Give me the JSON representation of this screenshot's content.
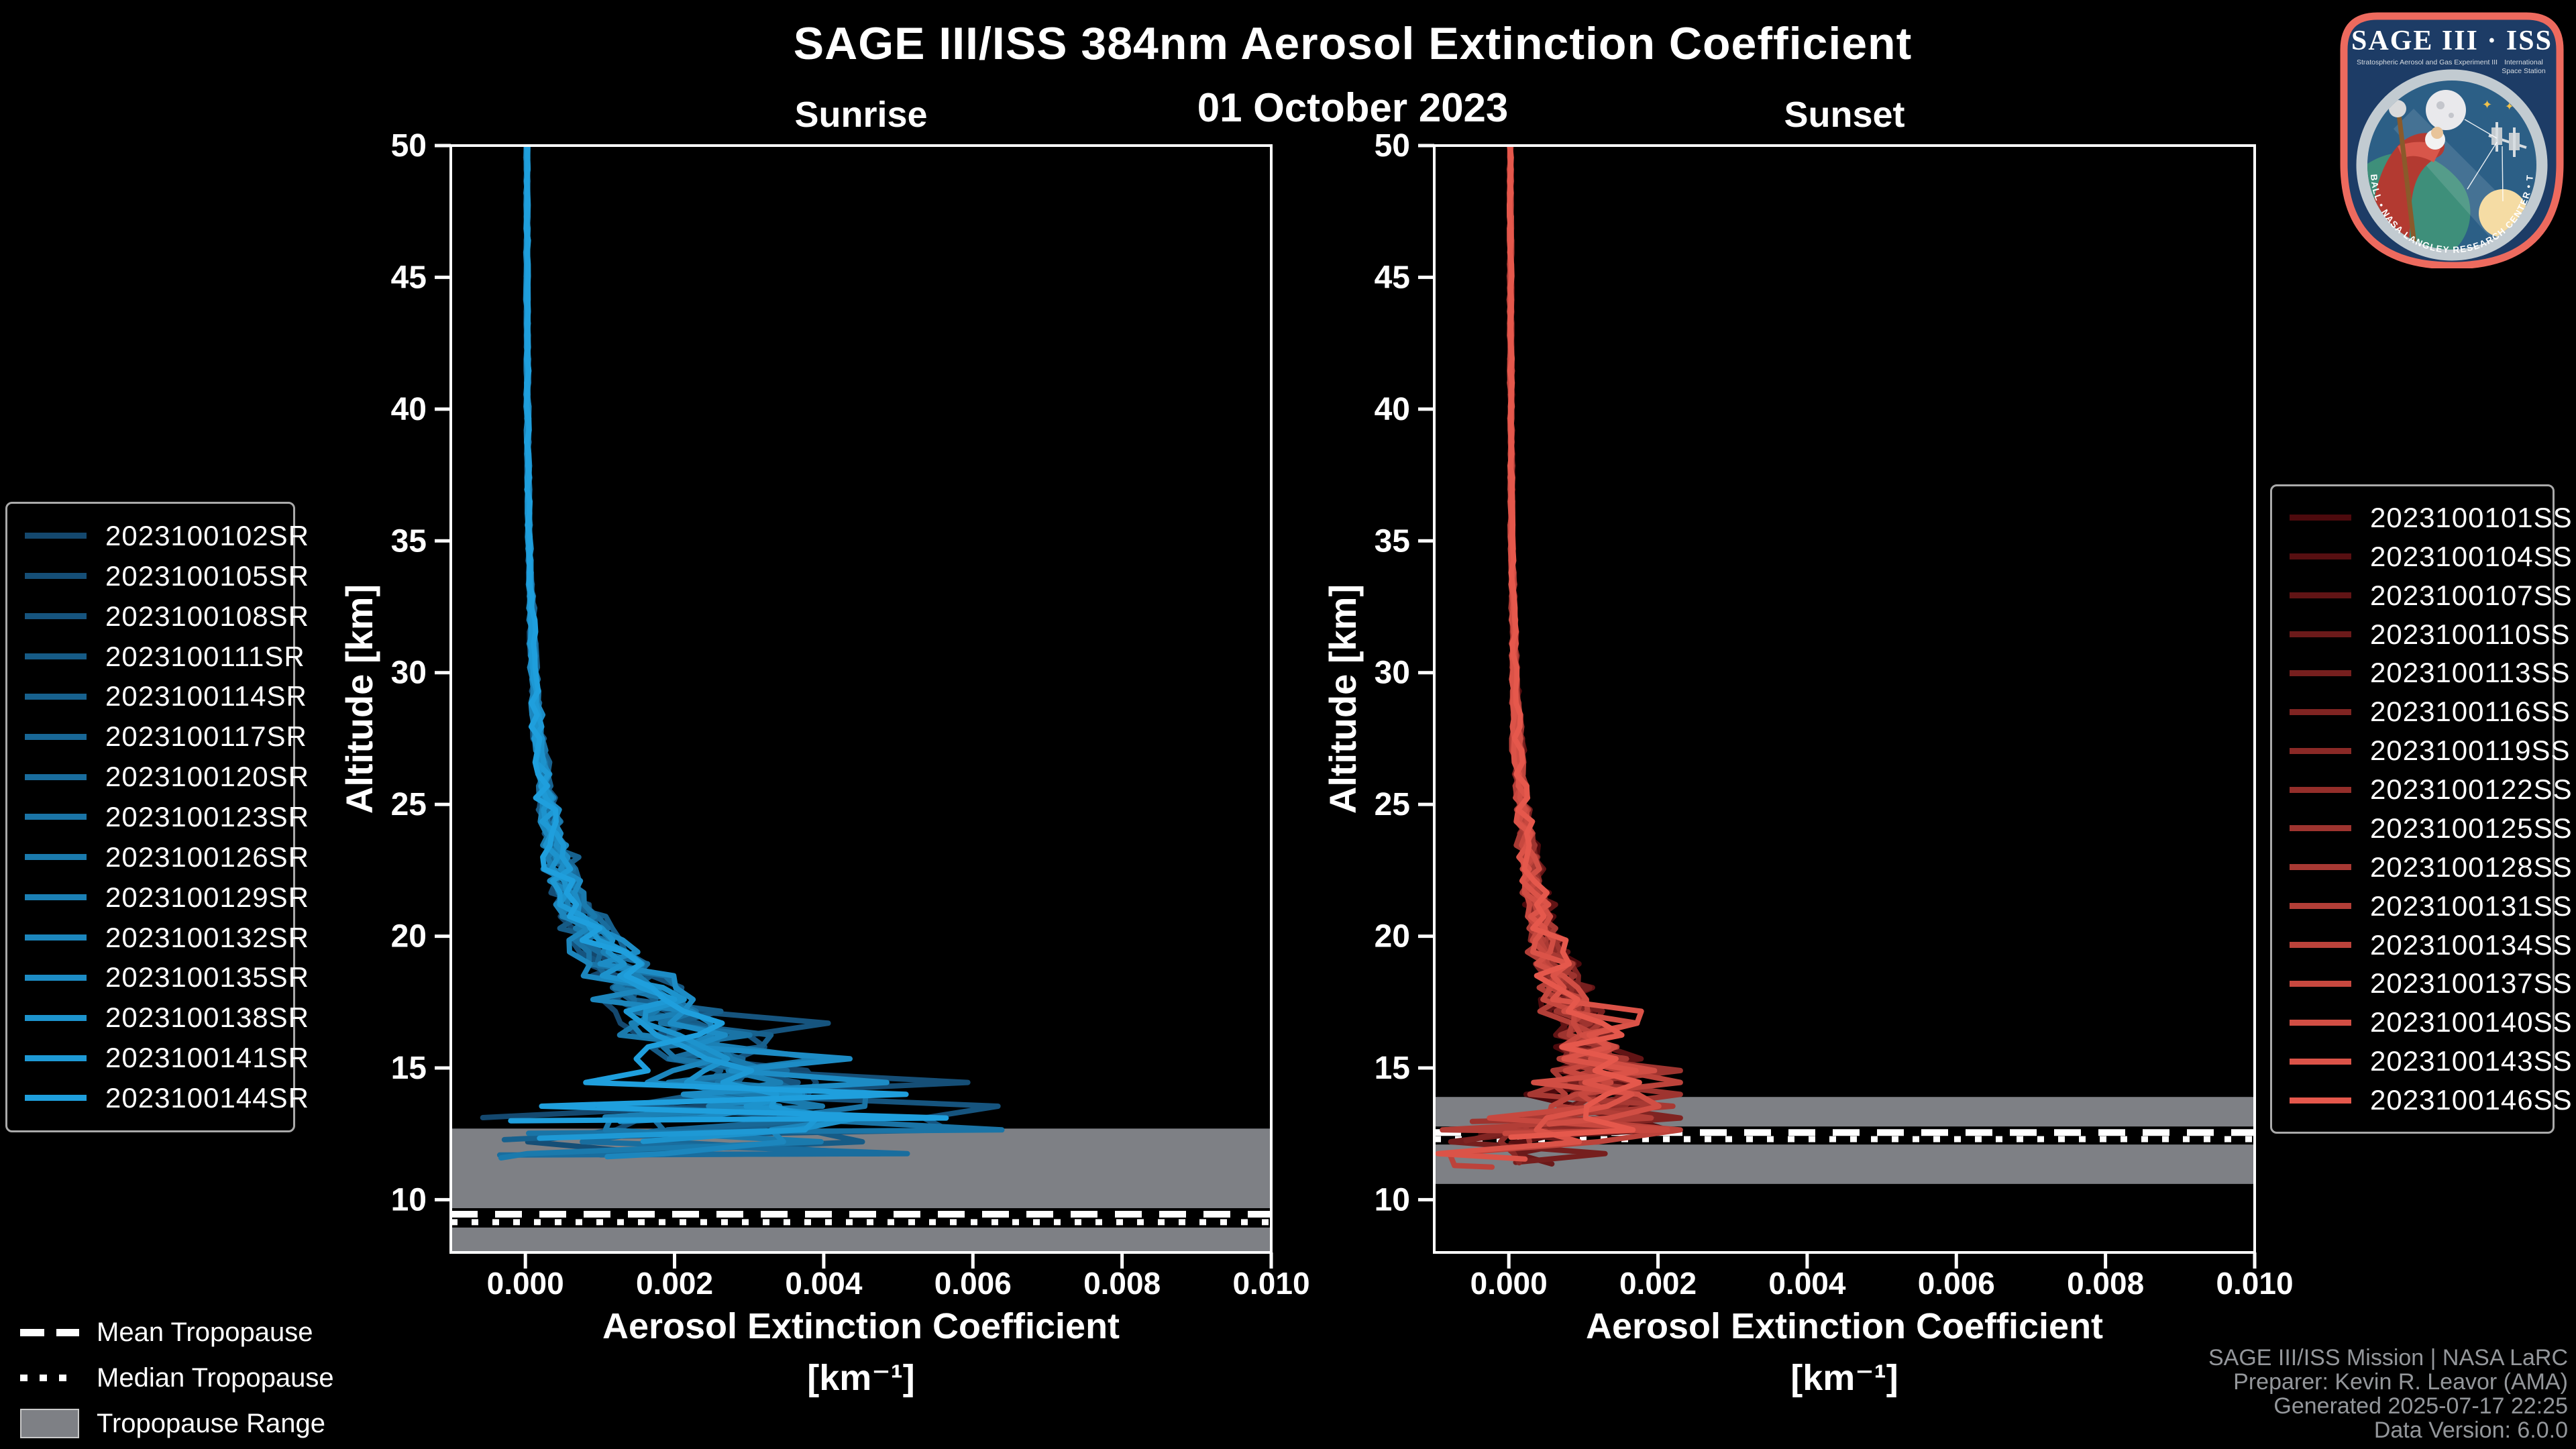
{
  "title": "SAGE III/ISS 384nm Aerosol Extinction Coefficient",
  "date": "01 October 2023",
  "credits": {
    "line1": "SAGE III/ISS Mission | NASA LaRC",
    "line2": "Preparer: Kevin R. Leavor (AMA)",
    "line3": "Generated 2025-07-17 22:25",
    "line4": "Data Version: 6.0.0"
  },
  "logo": {
    "main": "SAGE III · ISS",
    "sub_left": "Stratospheric Aerosol and Gas Experiment III",
    "sub_right_1": "International",
    "sub_right_2": "Space Station",
    "ring_text": "BALL • NASA LANGLEY RESEARCH CENTER • TAS-I • ESA"
  },
  "tropopause_legend": [
    {
      "label": "Mean Tropopause",
      "style": "dashed"
    },
    {
      "label": "Median Tropopause",
      "style": "dotted"
    },
    {
      "label": "Tropopause Range",
      "style": "band"
    }
  ],
  "chart_data": [
    {
      "type": "line",
      "title": "Sunrise",
      "xlabel_line1": "Aerosol Extinction Coefficient",
      "xlabel_line2": "[km⁻¹]",
      "ylabel": "Altitude [km]",
      "xlim": [
        -0.001,
        0.01
      ],
      "ylim": [
        8,
        50
      ],
      "x_tick_values": [
        0.0,
        0.002,
        0.004,
        0.006,
        0.008,
        0.01
      ],
      "x_tick_labels": [
        "0.000",
        "0.002",
        "0.004",
        "0.006",
        "0.008",
        "0.010"
      ],
      "y_tick_values": [
        10,
        15,
        20,
        25,
        30,
        35,
        40,
        45,
        50
      ],
      "series": [
        "2023100102SR",
        "2023100105SR",
        "2023100108SR",
        "2023100111SR",
        "2023100114SR",
        "2023100117SR",
        "2023100120SR",
        "2023100123SR",
        "2023100126SR",
        "2023100129SR",
        "2023100132SR",
        "2023100135SR",
        "2023100138SR",
        "2023100141SR",
        "2023100144SR"
      ],
      "color_ramp": [
        "#14486e",
        "#1f9fdd"
      ],
      "mean_profile_anchors": [
        [
          50,
          2e-05
        ],
        [
          40,
          3e-05
        ],
        [
          35,
          5e-05
        ],
        [
          30,
          0.00012
        ],
        [
          27,
          0.0002
        ],
        [
          25,
          0.0003
        ],
        [
          23,
          0.00045
        ],
        [
          21,
          0.0007
        ],
        [
          20,
          0.0009
        ],
        [
          19,
          0.0012
        ],
        [
          18,
          0.0016
        ],
        [
          17,
          0.002
        ],
        [
          16,
          0.0025
        ],
        [
          15,
          0.0028
        ],
        [
          14,
          0.003
        ],
        [
          13.2,
          0.0032
        ],
        [
          12.6,
          0.0031
        ],
        [
          12,
          0.0028
        ],
        [
          11.4,
          0.0024
        ]
      ],
      "spread_anchors": [
        [
          50,
          1.5e-05
        ],
        [
          35,
          2e-05
        ],
        [
          30,
          5e-05
        ],
        [
          26,
          0.0001
        ],
        [
          23,
          0.0002
        ],
        [
          21,
          0.0003
        ],
        [
          20,
          0.00042
        ],
        [
          18,
          0.0006
        ],
        [
          17,
          0.00075
        ],
        [
          16,
          0.0009
        ],
        [
          15,
          0.001
        ],
        [
          14,
          0.0012
        ],
        [
          13.2,
          0.0014
        ],
        [
          12.4,
          0.0015
        ],
        [
          11.4,
          0.0015
        ]
      ],
      "end_altitude_range_km": [
        11.5,
        13.3
      ],
      "max_extinction": 0.0066,
      "tropopause": {
        "mean_km": 9.45,
        "median_km": 9.15,
        "range_km": [
          8.0,
          12.7
        ]
      }
    },
    {
      "type": "line",
      "title": "Sunset",
      "xlabel_line1": "Aerosol Extinction Coefficient",
      "xlabel_line2": "[km⁻¹]",
      "ylabel": "Altitude [km]",
      "xlim": [
        -0.001,
        0.01
      ],
      "ylim": [
        8,
        50
      ],
      "x_tick_values": [
        0.0,
        0.002,
        0.004,
        0.006,
        0.008,
        0.01
      ],
      "x_tick_labels": [
        "0.000",
        "0.002",
        "0.004",
        "0.006",
        "0.008",
        "0.010"
      ],
      "y_tick_values": [
        10,
        15,
        20,
        25,
        30,
        35,
        40,
        45,
        50
      ],
      "series": [
        "2023100101SS",
        "2023100104SS",
        "2023100107SS",
        "2023100110SS",
        "2023100113SS",
        "2023100116SS",
        "2023100119SS",
        "2023100122SS",
        "2023100125SS",
        "2023100128SS",
        "2023100131SS",
        "2023100134SS",
        "2023100137SS",
        "2023100140SS",
        "2023100143SS",
        "2023100146SS"
      ],
      "color_ramp": [
        "#4d0a0d",
        "#e5584c"
      ],
      "mean_profile_anchors": [
        [
          50,
          2e-05
        ],
        [
          40,
          3e-05
        ],
        [
          35,
          4e-05
        ],
        [
          30,
          8e-05
        ],
        [
          27,
          0.00013
        ],
        [
          25,
          0.00018
        ],
        [
          23,
          0.00028
        ],
        [
          21,
          0.0004
        ],
        [
          20,
          0.0005
        ],
        [
          19,
          0.0006
        ],
        [
          18,
          0.00075
        ],
        [
          17,
          0.0009
        ],
        [
          16,
          0.00105
        ],
        [
          15,
          0.00125
        ],
        [
          14.2,
          0.0012
        ],
        [
          13.6,
          0.00105
        ],
        [
          13,
          0.0008
        ],
        [
          12.4,
          0.0005
        ],
        [
          11.8,
          0.0003
        ],
        [
          11.2,
          0.0002
        ]
      ],
      "spread_anchors": [
        [
          50,
          1.5e-05
        ],
        [
          35,
          2e-05
        ],
        [
          30,
          4e-05
        ],
        [
          26,
          8e-05
        ],
        [
          23,
          0.00013
        ],
        [
          21,
          0.0002
        ],
        [
          19,
          0.0003
        ],
        [
          17,
          0.0004
        ],
        [
          16,
          0.0005
        ],
        [
          15,
          0.00058
        ],
        [
          14,
          0.00062
        ],
        [
          13,
          0.0007
        ],
        [
          12,
          0.00075
        ],
        [
          11.2,
          0.00075
        ]
      ],
      "end_altitude_range_km": [
        11.2,
        13.0
      ],
      "max_extinction": 0.0023,
      "tropopause": {
        "mean_km": 12.55,
        "median_km": 12.3,
        "range_km": [
          10.6,
          13.9
        ]
      }
    }
  ]
}
